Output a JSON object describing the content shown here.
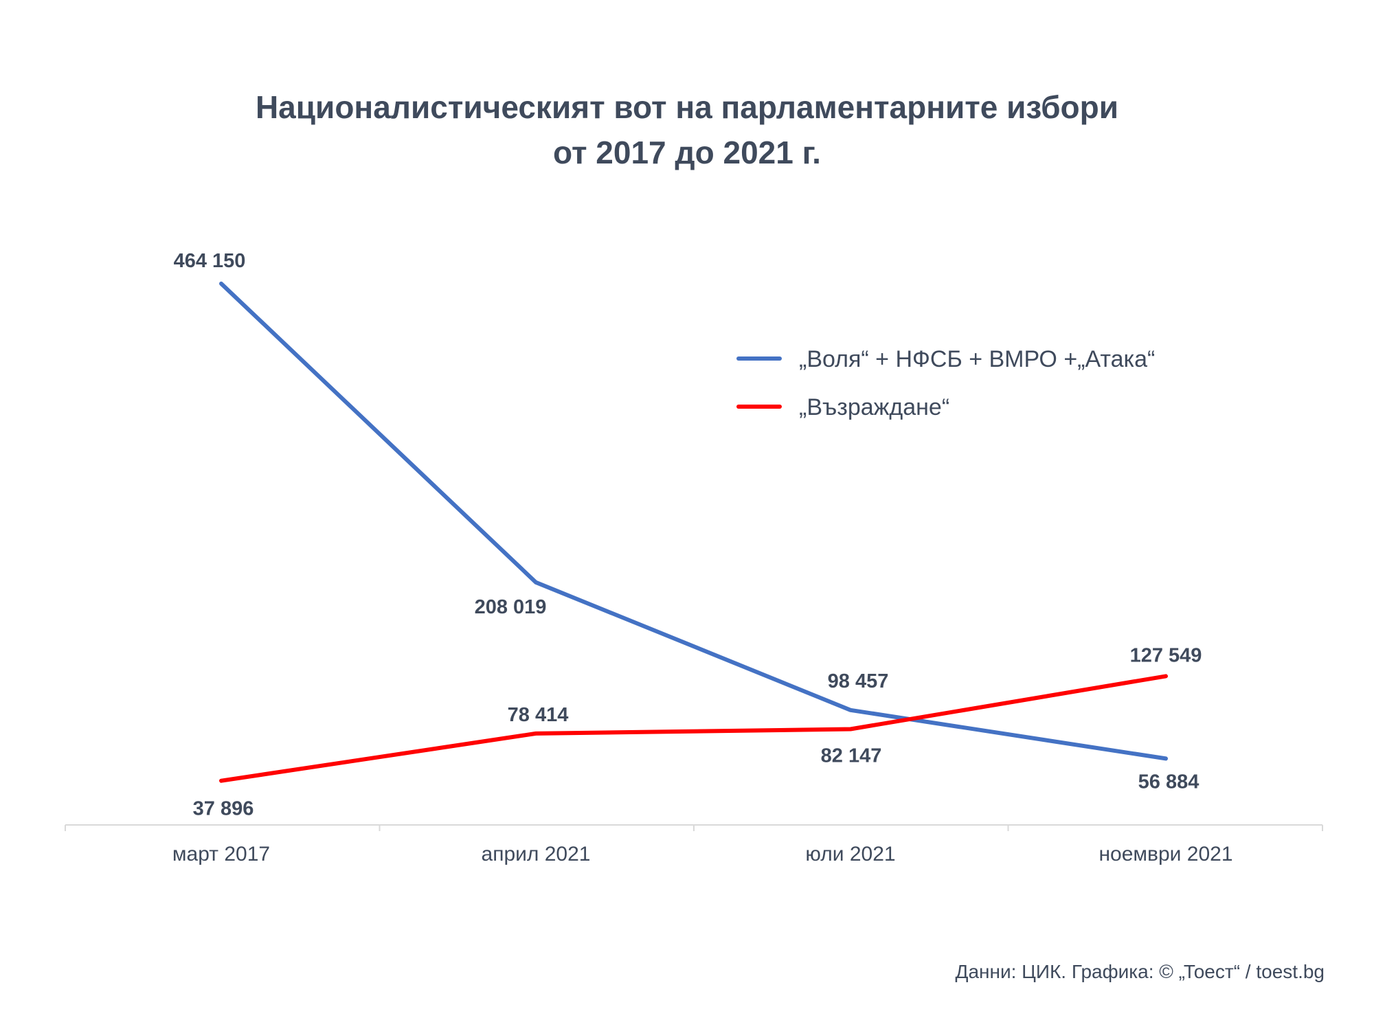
{
  "chart_data": {
    "type": "line",
    "title_line1": "Националистическият вот на парламентарните избори",
    "title_line2": "от 2017 до 2021 г.",
    "categories": [
      "март 2017",
      "април 2021",
      "юли 2021",
      "ноември 2021"
    ],
    "series": [
      {
        "name": "„Воля“ + НФСБ + ВМРО +„Атака“",
        "color": "#4472c4",
        "values": [
          464150,
          208019,
          98457,
          56884
        ],
        "labels": [
          "464 150",
          "208 019",
          "98 457",
          "56 884"
        ]
      },
      {
        "name": "„Възраждане“",
        "color": "#ff0000",
        "values": [
          37896,
          78414,
          82147,
          127549
        ],
        "labels": [
          "37 896",
          "78 414",
          "82 147",
          "127 549"
        ]
      }
    ],
    "ylim": [
      0,
      500000
    ],
    "grid": false,
    "legend_position": "top-right"
  },
  "source": "Данни: ЦИК. Графика: © „Тоест“ / toest.bg"
}
